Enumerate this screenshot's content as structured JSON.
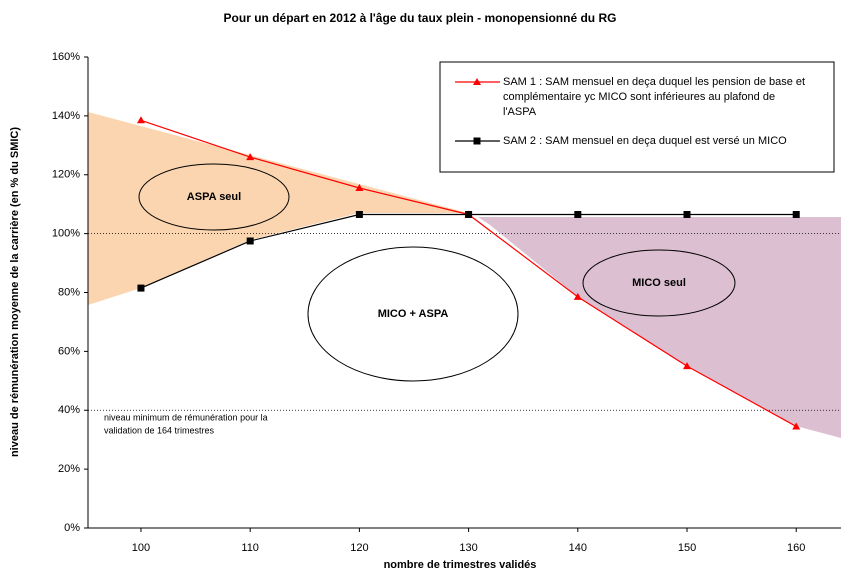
{
  "chart_data": {
    "type": "line",
    "title": "Pour un départ en 2012 à l'âge du taux plein - monopensionné du RG",
    "x_label": "nombre de trimestres validés",
    "y_label": "niveau de rémunération moyenne de la carrière  (en % du SMIC)",
    "x": [
      100,
      110,
      120,
      130,
      140,
      150,
      160
    ],
    "series": [
      {
        "name": "SAM 1 : SAM mensuel en deça duquel les pension de base et complémentaire yc MICO sont inférieures au plafond de l'ASPA",
        "color": "#ff0000",
        "marker": "triangle",
        "values": [
          138.5,
          126,
          115.5,
          106.5,
          78.5,
          55,
          34.5
        ]
      },
      {
        "name": "SAM 2 : SAM mensuel en deça duquel est versé un MICO",
        "color": "#000000",
        "marker": "square",
        "values": [
          81.5,
          97.5,
          106.5,
          106.5,
          106.5,
          106.5,
          106.5
        ]
      }
    ],
    "xlim": [
      95.15,
      164.1
    ],
    "xticks": [
      100,
      110,
      120,
      130,
      140,
      150,
      160
    ],
    "ylim": [
      0,
      160
    ],
    "yticks": [
      {
        "value": 0,
        "label": "0%"
      },
      {
        "value": 20,
        "label": "20%"
      },
      {
        "value": 40,
        "label": "40%"
      },
      {
        "value": 60,
        "label": "60%"
      },
      {
        "value": 80,
        "label": "80%"
      },
      {
        "value": 100,
        "label": "100%"
      },
      {
        "value": 120,
        "label": "120%"
      },
      {
        "value": 140,
        "label": "140%"
      },
      {
        "value": 160,
        "label": "160%"
      }
    ],
    "reference_lines": [
      100,
      40
    ],
    "annotations": [
      "ASPA seul",
      "MICO + ASPA",
      "MICO seul",
      "niveau minimum de rémunération pour la",
      "validation de 164 trimestres"
    ]
  }
}
